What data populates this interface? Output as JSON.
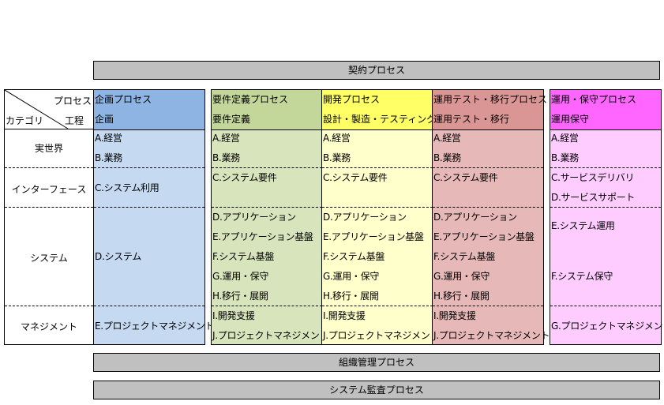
{
  "top_bar": "契約プロセス",
  "bottom_bars": [
    "組織管理プロセス",
    "システム監査プロセス"
  ],
  "corner": {
    "process": "プロセス",
    "category": "カテゴリ",
    "stage": "工程"
  },
  "categories": [
    "実世界",
    "インターフェース",
    "システム",
    "マネジメント"
  ],
  "columns": [
    {
      "process": "企画プロセス",
      "stage": "企画",
      "header_color": "#8db4e2",
      "body_color": "#c5d9f1",
      "items": [
        "A.経営",
        "B.業務",
        "C.システム利用",
        "D.システム",
        "E.プロジェクトマネジメント"
      ]
    },
    {
      "process": "要件定義プロセス",
      "stage": "要件定義",
      "header_color": "#c4d79b",
      "body_color": "#d8e4bc",
      "items": [
        "A.経営",
        "B.業務",
        "C.システム要件",
        "D.アプリケーション",
        "E.アプリケーション基盤",
        "F.システム基盤",
        "G.運用・保守",
        "H.移行・展開",
        "I.開発支援",
        "J.プロジェクトマネジメント"
      ]
    },
    {
      "process": "開発プロセス",
      "stage": "設計・製造・テスティング",
      "header_color": "#ffff66",
      "body_color": "#ffffcc",
      "items": [
        "A.経営",
        "B.業務",
        "C.システム要件",
        "D.アプリケーション",
        "E.アプリケーション基盤",
        "F.システム基盤",
        "G.運用・保守",
        "H.移行・展開",
        "I.開発支援",
        "J.プロジェクトマネジメント"
      ]
    },
    {
      "process": "運用テスト・移行プロセス",
      "stage": "運用テスト・移行",
      "header_color": "#da9694",
      "body_color": "#e6b8b7",
      "items": [
        "A.経営",
        "B.業務",
        "C.システム要件",
        "D.アプリケーション",
        "E.アプリケーション基盤",
        "F.システム基盤",
        "G.運用・保守",
        "H.移行・展開",
        "I.開発支援",
        "J.プロジェクトマネジメント"
      ]
    },
    {
      "process": "運用・保守プロセス",
      "stage": "運用保守",
      "header_color": "#ff66ff",
      "body_color": "#ffccff",
      "items": [
        "A.経営",
        "B.業務",
        "C.サービスデリバリ",
        "D.サービスサポート",
        "E.システム運用",
        "F.システム保守",
        "G.プロジェクトマネジメント"
      ]
    }
  ]
}
